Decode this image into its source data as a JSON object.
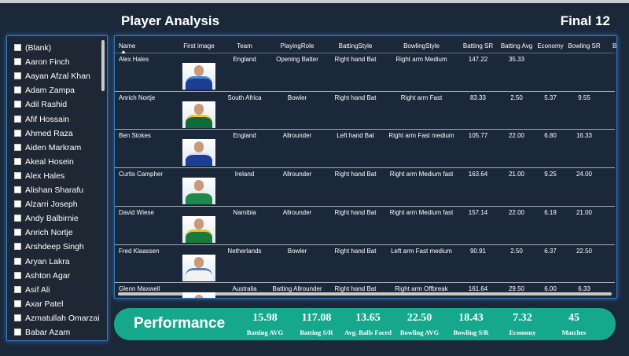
{
  "header": {
    "title": "Player Analysis",
    "subtitle": "Final 12"
  },
  "slicer": {
    "items": [
      "(Blank)",
      "Aaron Finch",
      "Aayan Afzal Khan",
      "Adam Zampa",
      "Adil Rashid",
      "Afif Hossain",
      "Ahmed Raza",
      "Aiden Markram",
      "Akeal Hosein",
      "Alex Hales",
      "Alishan Sharafu",
      "Alzarri Joseph",
      "Andy Balbirnie",
      "Anrich Nortje",
      "Arshdeep Singh",
      "Aryan Lakra",
      "Ashton Agar",
      "Asif Ali",
      "Axar Patel",
      "Azmatullah Omarzai",
      "Babar Azam"
    ]
  },
  "table": {
    "columns": [
      "Name",
      "First image",
      "Team",
      "PlayingRole",
      "BattingStyle",
      "BowlingStyle",
      "Batting SR",
      "Batting Avg",
      "Economy",
      "Bowling SR",
      "Bo"
    ],
    "rows": [
      [
        "Alex Hales",
        null,
        "England",
        "Opening Batter",
        "Right hand Bat",
        "Right arm Medium",
        "147.22",
        "35.33",
        null,
        null,
        null
      ],
      [
        "Anrich Nortje",
        null,
        "South Africa",
        "Bowler",
        "Right hand Bat",
        "Right arm Fast",
        "83.33",
        "2.50",
        "5.37",
        "9.55",
        null
      ],
      [
        "Ben Stokes",
        null,
        "England",
        "Allrounder",
        "Left hand Bat",
        "Right arm Fast medium",
        "105.77",
        "22.00",
        "6.80",
        "16.33",
        null
      ],
      [
        "Curtis Campher",
        null,
        "Ireland",
        "Allrounder",
        "Right hand Bat",
        "Right arm Medium fast",
        "163.64",
        "21.00",
        "9.25",
        "24.00",
        null
      ],
      [
        "David Wiese",
        null,
        "Namibia",
        "Allrounder",
        "Right hand Bat",
        "Right arm Medium fast",
        "157.14",
        "22.00",
        "6.19",
        "21.00",
        null
      ],
      [
        "Fred Klaassen",
        null,
        "Netherlands",
        "Bowler",
        "Right hand Bat",
        "Left arm Fast medium",
        "90.91",
        "2.50",
        "6.37",
        "22.50",
        null
      ],
      [
        "Glenn Maxwell",
        null,
        "Australia",
        "Batting Allrounder",
        "Right hand Bat",
        "Right arm Offbreak",
        "161.64",
        "29.50",
        "6.00",
        "6.33",
        null
      ]
    ]
  },
  "kpis": {
    "title": "Performance",
    "items": [
      {
        "value": "15.98",
        "label": "Batting AVG"
      },
      {
        "value": "117.08",
        "label": "Batting S/R"
      },
      {
        "value": "13.65",
        "label": "Avg. Balls Faced"
      },
      {
        "value": "22.50",
        "label": "Bowling AVG"
      },
      {
        "value": "18.43",
        "label": "Bowling S/R"
      },
      {
        "value": "7.32",
        "label": "Economy"
      },
      {
        "value": "45",
        "label": "Matches"
      }
    ]
  }
}
